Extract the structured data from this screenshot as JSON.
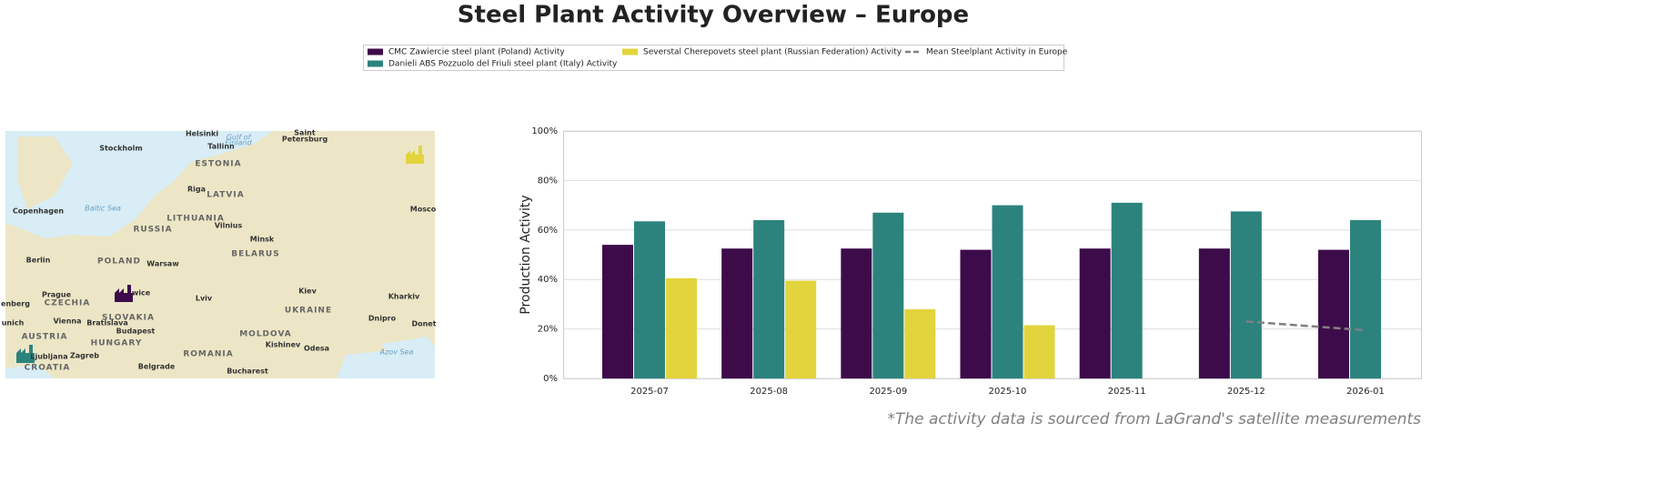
{
  "title": "Steel Plant Activity Overview – Europe",
  "footnote": "*The activity data is sourced from LaGrand's satellite measurements",
  "map": {
    "labels": [
      "Helsinki",
      "Saint",
      "Petersburg",
      "Stockholm",
      "Tallinn",
      "Gulf of",
      "Finland",
      "ESTONIA",
      "Riga",
      "LATVIA",
      "Copenhagen",
      "Baltic Sea",
      "LITHUANIA",
      "RUSSIA",
      "Vilnius",
      "Minsk",
      "BELARUS",
      "Mosco",
      "Berlin",
      "POLAND",
      "Warsaw",
      "Prague",
      "CZECHIA",
      "wice",
      "Lviv",
      "Kiev",
      "Kharkiv",
      "UKRAINE",
      "enberg",
      "unich",
      "Vienna",
      "Bratislava",
      "SLOVAKIA",
      "Dnipro",
      "Donet",
      "Budapest",
      "HUNGARY",
      "MOLDOVA",
      "Kishinev",
      "Odesa",
      "AUSTRIA",
      "ROMANIA",
      "Azov Sea",
      "Zagreb",
      "Ljubljana",
      "Belgrade",
      "Bucharest",
      "CROATIA"
    ]
  },
  "chart_data": {
    "type": "bar",
    "categories": [
      "2025-07",
      "2025-08",
      "2025-09",
      "2025-10",
      "2025-11",
      "2025-12",
      "2026-01"
    ],
    "series": [
      {
        "name": "CMC Zawiercie steel plant (Poland) Activity",
        "color": "#3d0b4a",
        "values": [
          54,
          52.5,
          52.5,
          52,
          52.5,
          52.5,
          52
        ]
      },
      {
        "name": "Danieli ABS Pozzuolo del Friuli steel plant (Italy) Activity",
        "color": "#2c837e",
        "values": [
          63.5,
          64,
          67,
          70,
          71,
          67.5,
          64
        ]
      },
      {
        "name": "Severstal Cherepovets steel plant (Russian Federation) Activity",
        "color": "#e2d43c",
        "values": [
          40.5,
          39.5,
          28,
          21.5,
          null,
          null,
          null
        ]
      },
      {
        "name": "Mean Steelplant Activity in Europe",
        "color": "#808080",
        "linestyle": "dashed",
        "values": [
          null,
          null,
          null,
          null,
          null,
          23,
          19.5
        ]
      }
    ],
    "ylabel": "Production Activity",
    "ylim": [
      0,
      100
    ],
    "yticks": [
      {
        "value": 0,
        "label": "0%"
      },
      {
        "value": 20,
        "label": "20%"
      },
      {
        "value": 40,
        "label": "40%"
      },
      {
        "value": 60,
        "label": "60%"
      },
      {
        "value": 80,
        "label": "80%"
      },
      {
        "value": 100,
        "label": "100%"
      }
    ],
    "grid": true
  }
}
